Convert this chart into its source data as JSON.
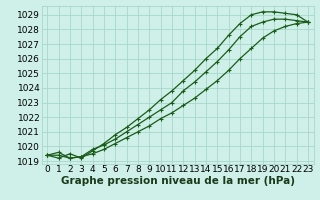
{
  "xlabel": "Graphe pression niveau de la mer (hPa)",
  "x_ticks": [
    0,
    1,
    2,
    3,
    4,
    5,
    6,
    7,
    8,
    9,
    10,
    11,
    12,
    13,
    14,
    15,
    16,
    17,
    18,
    19,
    20,
    21,
    22,
    23
  ],
  "xlim": [
    -0.5,
    23.5
  ],
  "ylim": [
    1018.8,
    1029.6
  ],
  "y_ticks": [
    1019,
    1020,
    1021,
    1022,
    1023,
    1024,
    1025,
    1026,
    1027,
    1028,
    1029
  ],
  "bg_color": "#cff0e8",
  "grid_color": "#a8d8cc",
  "line_color": "#1a5c1a",
  "series1": [
    1019.4,
    1019.6,
    1019.2,
    1019.3,
    1019.8,
    1020.1,
    1020.5,
    1021.0,
    1021.5,
    1022.0,
    1022.5,
    1023.0,
    1023.8,
    1024.4,
    1025.1,
    1025.8,
    1026.6,
    1027.5,
    1028.2,
    1028.5,
    1028.7,
    1028.7,
    1028.6,
    1028.5
  ],
  "series2": [
    1019.4,
    1019.2,
    1019.5,
    1019.2,
    1019.7,
    1020.2,
    1020.8,
    1021.3,
    1021.9,
    1022.5,
    1023.2,
    1023.8,
    1024.5,
    1025.2,
    1026.0,
    1026.7,
    1027.6,
    1028.4,
    1029.0,
    1029.2,
    1029.2,
    1029.1,
    1029.0,
    1028.5
  ],
  "series3": [
    1019.4,
    1019.4,
    1019.2,
    1019.3,
    1019.5,
    1019.8,
    1020.2,
    1020.6,
    1021.0,
    1021.4,
    1021.9,
    1022.3,
    1022.8,
    1023.3,
    1023.9,
    1024.5,
    1025.2,
    1026.0,
    1026.7,
    1027.4,
    1027.9,
    1028.2,
    1028.4,
    1028.5
  ],
  "tick_fontsize": 6.5,
  "label_fontsize": 7.5,
  "marker_size": 3.5,
  "line_width": 0.9
}
